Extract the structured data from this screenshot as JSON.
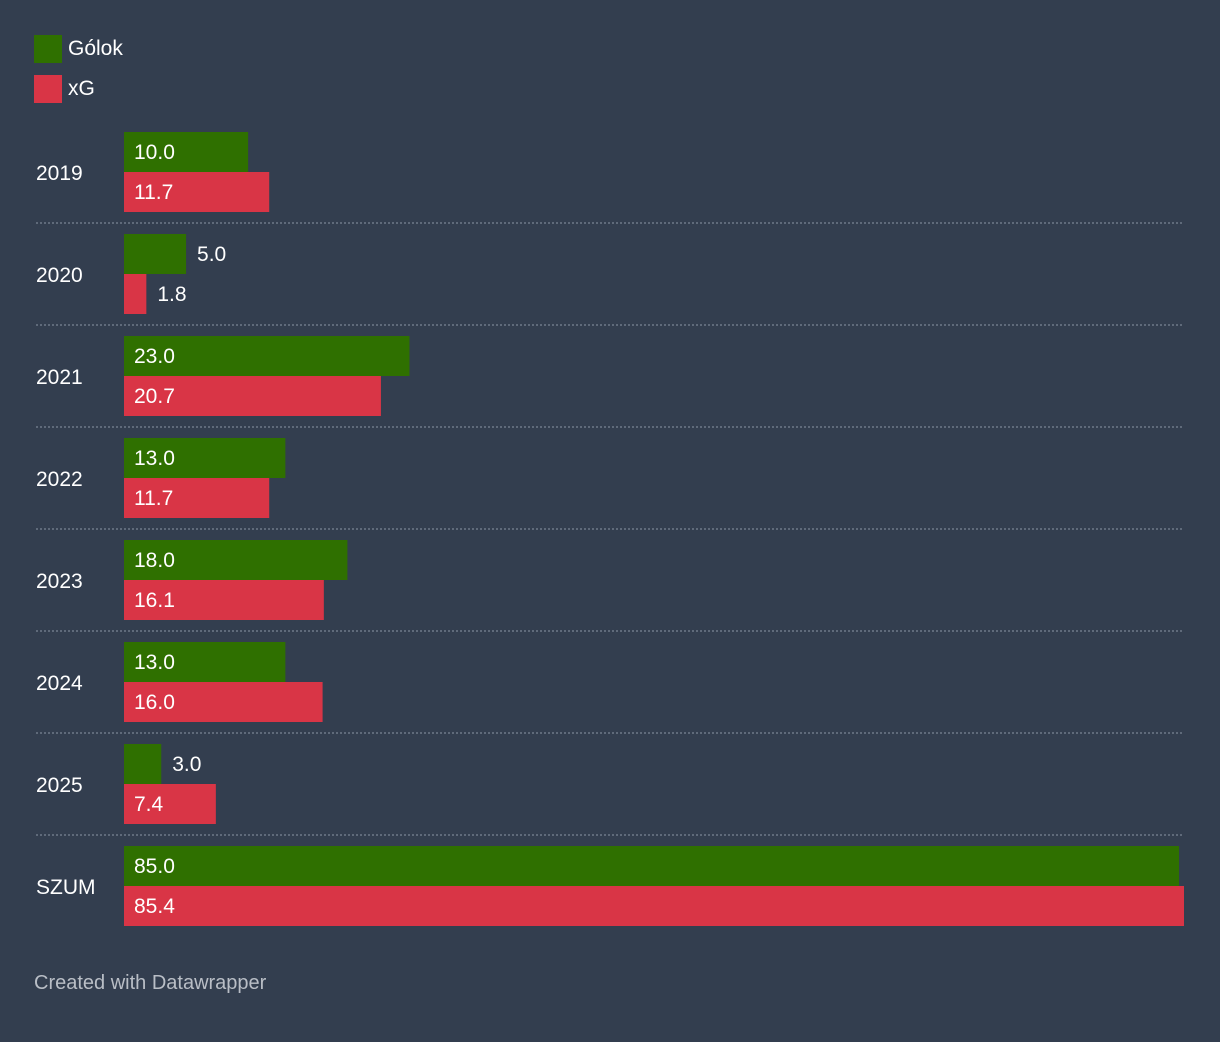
{
  "chart_data": {
    "type": "bar",
    "orientation": "horizontal",
    "grouped": true,
    "categories": [
      "2019",
      "2020",
      "2021",
      "2022",
      "2023",
      "2024",
      "2025",
      "SZUM"
    ],
    "series": [
      {
        "name": "Gólok",
        "color": "#2f7000",
        "values": [
          10.0,
          5.0,
          23.0,
          13.0,
          18.0,
          13.0,
          3.0,
          85.0
        ],
        "labels": [
          "10.0",
          "5.0",
          "23.0",
          "13.0",
          "18.0",
          "13.0",
          "3.0",
          "85.0"
        ]
      },
      {
        "name": "xG",
        "color": "#d93546",
        "values": [
          11.7,
          1.8,
          20.7,
          11.7,
          16.1,
          16.0,
          7.4,
          85.4
        ],
        "labels": [
          "11.7",
          "1.8",
          "20.7",
          "11.7",
          "16.1",
          "16.0",
          "7.4",
          "85.4"
        ]
      }
    ],
    "xlim": [
      0,
      85.4
    ],
    "legend_position": "top-left",
    "grid": false
  },
  "footer": {
    "credit": "Created with Datawrapper"
  }
}
